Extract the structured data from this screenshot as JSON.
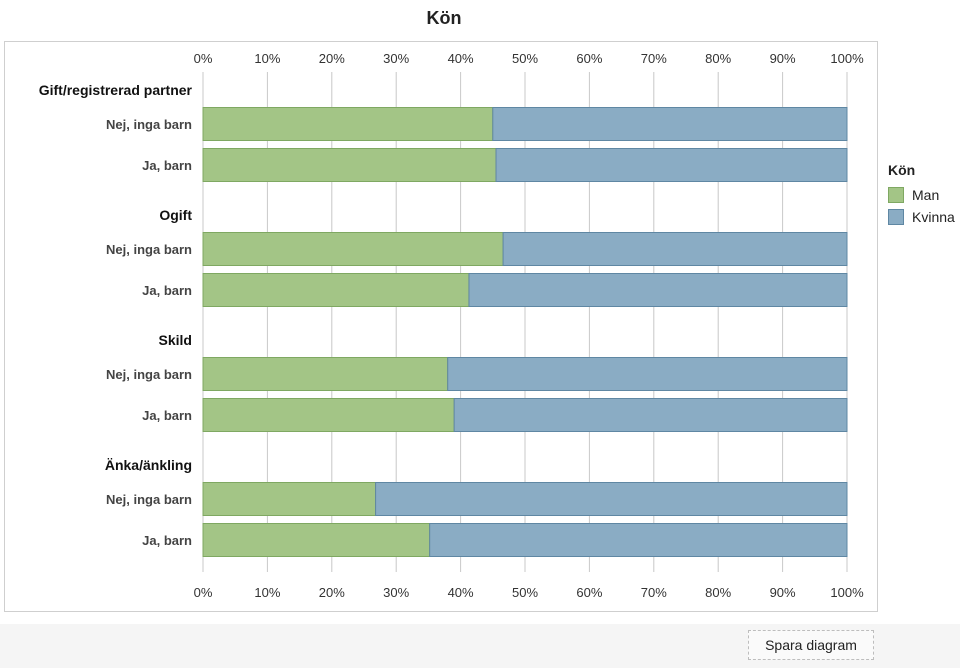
{
  "chart_data": {
    "type": "bar",
    "orientation": "horizontal",
    "stacked": "percent",
    "title": "Kön",
    "xlim": [
      0,
      100
    ],
    "x_ticks": [
      "0%",
      "10%",
      "20%",
      "30%",
      "40%",
      "50%",
      "60%",
      "70%",
      "80%",
      "90%",
      "100%"
    ],
    "grid": true,
    "legend": {
      "title": "Kön",
      "placement": "right"
    },
    "groups": [
      {
        "label": "Gift/registrerad partner",
        "rows": [
          {
            "label": "Nej, inga barn",
            "man": 45,
            "kvinna": 55
          },
          {
            "label": "Ja, barn",
            "man": 45.5,
            "kvinna": 54.5
          }
        ]
      },
      {
        "label": "Ogift",
        "rows": [
          {
            "label": "Nej, inga barn",
            "man": 46.6,
            "kvinna": 53.4
          },
          {
            "label": "Ja, barn",
            "man": 41.3,
            "kvinna": 58.7
          }
        ]
      },
      {
        "label": "Skild",
        "rows": [
          {
            "label": "Nej, inga barn",
            "man": 38,
            "kvinna": 62
          },
          {
            "label": "Ja, barn",
            "man": 39,
            "kvinna": 61
          }
        ]
      },
      {
        "label": "Änka/änkling",
        "rows": [
          {
            "label": "Nej, inga barn",
            "man": 26.8,
            "kvinna": 73.2
          },
          {
            "label": "Ja, barn",
            "man": 35.2,
            "kvinna": 64.8
          }
        ]
      }
    ],
    "series": [
      {
        "key": "man",
        "name": "Man",
        "color": "#a3c586",
        "stroke": "#7fa862"
      },
      {
        "key": "kvinna",
        "name": "Kvinna",
        "color": "#8aacc4",
        "stroke": "#5f87a3"
      }
    ]
  },
  "toolbar": {
    "save_label": "Spara diagram"
  }
}
